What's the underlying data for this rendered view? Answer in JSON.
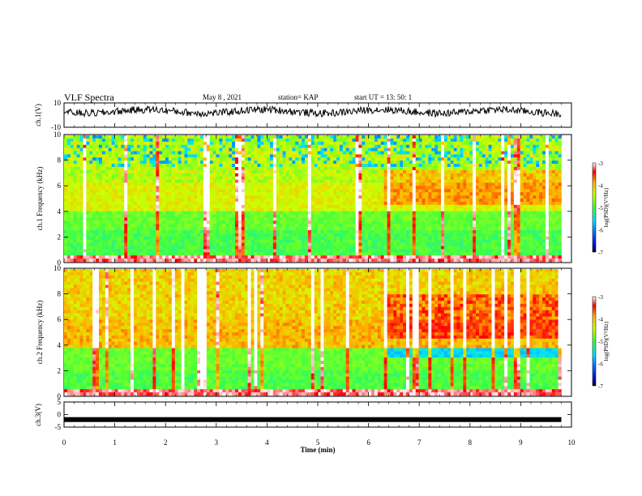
{
  "header": {
    "title": "VLF Spectra",
    "date": "May 8 , 2021",
    "station": "station= KAP",
    "start": "start UT = 13: 50: 1"
  },
  "chart_data": [
    {
      "type": "line",
      "panel": "ch1-waveform",
      "ylabel": "ch.1(V)",
      "ylim": [
        -10,
        10
      ],
      "yticks": [
        "10",
        "-10"
      ],
      "xlim": [
        0,
        10
      ],
      "baseline": 3
    },
    {
      "type": "heatmap",
      "panel": "ch1-spectrogram",
      "ylabel": "ch.1 Frequency (kHz)",
      "ylim": [
        0,
        10
      ],
      "yticks": [
        "0",
        "2",
        "4",
        "6",
        "8",
        "10"
      ],
      "xlim": [
        0,
        9.8
      ],
      "colorbar": {
        "label": "log(PSD)(V²/Hz)",
        "range": [
          -7,
          -3
        ],
        "ticks": [
          "-3",
          "-4",
          "-5",
          "-6",
          "-7"
        ]
      },
      "changepoint_min": 6.3
    },
    {
      "type": "heatmap",
      "panel": "ch2-spectrogram",
      "ylabel": "ch.2 Frequency (kHz)",
      "ylim": [
        0,
        10
      ],
      "yticks": [
        "0",
        "2",
        "4",
        "6",
        "8",
        "10"
      ],
      "xlim": [
        0,
        9.8
      ],
      "colorbar": {
        "label": "log(PSD)(V²/Hz)",
        "range": [
          -7,
          -3
        ],
        "ticks": [
          "-3",
          "-4",
          "-5",
          "-6",
          "-7"
        ]
      },
      "changepoint_min": 6.3
    },
    {
      "type": "line",
      "panel": "ch3-waveform",
      "ylabel": "ch.3(V)",
      "ylim": [
        -5,
        5
      ],
      "yticks": [
        "5",
        "0",
        "-5"
      ],
      "xlim": [
        0,
        10
      ],
      "baseline": -2
    }
  ],
  "xaxis": {
    "label": "Time (min)",
    "ticks": [
      "0",
      "1",
      "2",
      "3",
      "4",
      "5",
      "6",
      "7",
      "8",
      "9",
      "10"
    ]
  }
}
